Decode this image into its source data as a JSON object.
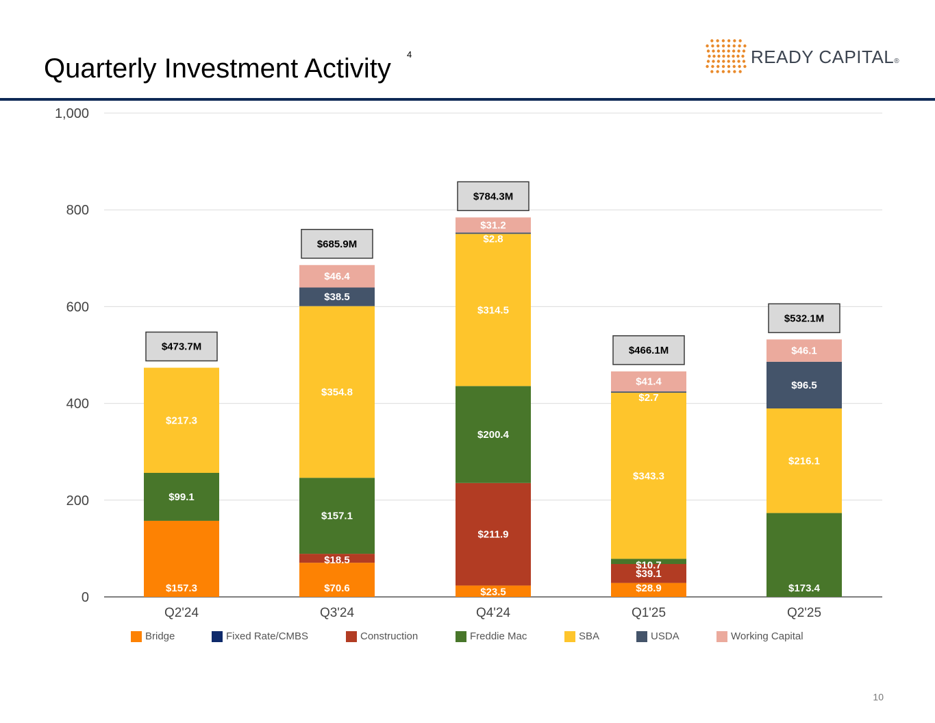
{
  "page": {
    "title": "Quarterly Investment Activity",
    "footnote_marker": "4",
    "logo_text": "READY CAPITAL",
    "logo_mark": "®",
    "page_number": "10"
  },
  "colors": {
    "Bridge": "#fd8203",
    "Fixed Rate/CMBS": "#0e2a6b",
    "Construction": "#b23c23",
    "Freddie Mac": "#48762a",
    "SBA": "#fec52c",
    "USDA": "#44546a",
    "Working Capital": "#ebaa9d",
    "rule": "#0f2a56",
    "logo_dots": "#e98a2b"
  },
  "chart_data": {
    "type": "bar",
    "stacked": true,
    "title": "Quarterly Investment Activity",
    "xlabel": "",
    "ylabel": "",
    "ylim": [
      0,
      1000
    ],
    "yticks": [
      0,
      200,
      400,
      600,
      800,
      1000
    ],
    "ytick_labels": [
      "0",
      "200",
      "400",
      "600",
      "800",
      "1,000"
    ],
    "grid": true,
    "legend_position": "bottom",
    "categories": [
      "Q2'24",
      "Q3'24",
      "Q4'24",
      "Q1'25",
      "Q2'25"
    ],
    "series": [
      {
        "name": "Bridge",
        "values": [
          157.3,
          70.6,
          23.5,
          28.9,
          null
        ],
        "labels": [
          "$157.3",
          "$70.6",
          "$23.5",
          "$28.9",
          ""
        ]
      },
      {
        "name": "Fixed Rate/CMBS",
        "values": [
          null,
          null,
          null,
          null,
          null
        ],
        "labels": [
          "",
          "",
          "",
          "",
          ""
        ]
      },
      {
        "name": "Construction",
        "values": [
          null,
          18.5,
          211.9,
          39.1,
          null
        ],
        "labels": [
          "",
          "$18.5",
          "$211.9",
          "$39.1",
          ""
        ]
      },
      {
        "name": "Freddie Mac",
        "values": [
          99.1,
          157.1,
          200.4,
          10.7,
          173.4
        ],
        "labels": [
          "$99.1",
          "$157.1",
          "$200.4",
          "$10.7",
          "$173.4"
        ]
      },
      {
        "name": "SBA",
        "values": [
          217.3,
          354.8,
          314.5,
          343.3,
          216.1
        ],
        "labels": [
          "$217.3",
          "$354.8",
          "$314.5",
          "$343.3",
          "$216.1"
        ]
      },
      {
        "name": "USDA",
        "values": [
          null,
          38.5,
          2.8,
          2.7,
          96.5
        ],
        "labels": [
          "",
          "$38.5",
          "$2.8",
          "$2.7",
          "$96.5"
        ]
      },
      {
        "name": "Working Capital",
        "values": [
          null,
          46.4,
          31.2,
          41.4,
          46.1
        ],
        "labels": [
          "",
          "$46.4",
          "$31.2",
          "$41.4",
          "$46.1"
        ]
      }
    ],
    "totals": [
      "$473.7M",
      "$685.9M",
      "$784.3M",
      "$466.1M",
      "$532.1M"
    ],
    "legend": [
      "Bridge",
      "Fixed Rate/CMBS",
      "Construction",
      "Freddie Mac",
      "SBA",
      "USDA",
      "Working Capital"
    ]
  }
}
